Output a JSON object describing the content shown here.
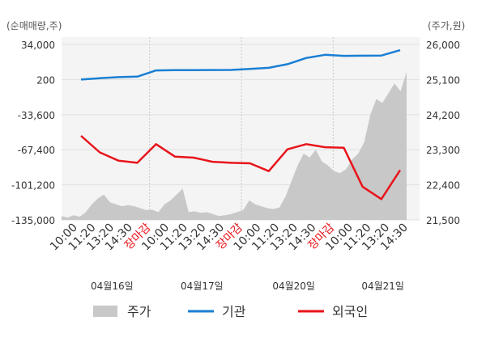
{
  "chart_data": {
    "type": "line",
    "left_axis_title": "(순매매량,주)",
    "right_axis_title": "(주가,원)",
    "left_ylim": [
      -135000,
      34000
    ],
    "right_ylim": [
      21500,
      26000
    ],
    "left_ticks": [
      "34,000",
      "200",
      "-33,600",
      "-67,400",
      "-101,200",
      "-135,000"
    ],
    "right_ticks": [
      "26,000",
      "25,100",
      "24,200",
      "23,300",
      "22,400",
      "21,500"
    ],
    "x_tick_labels": [
      "10:00",
      "11:20",
      "13:20",
      "14:30",
      "장마감",
      "10:00",
      "11:20",
      "13:20",
      "14:30",
      "장마감",
      "10:00",
      "11:20",
      "13:20",
      "14:30",
      "장마감",
      "10:00",
      "11:20",
      "13:20",
      "14:30"
    ],
    "x_tick_highlight": [
      false,
      false,
      false,
      false,
      true,
      false,
      false,
      false,
      false,
      true,
      false,
      false,
      false,
      false,
      true,
      false,
      false,
      false,
      false
    ],
    "dates": [
      "04월16일",
      "04월17일",
      "04월20일",
      "04월21일"
    ],
    "grid": true,
    "legend_position": "bottom",
    "legend": [
      {
        "name": "주가",
        "style": "area",
        "color": "#c8c8c8"
      },
      {
        "name": "기관",
        "style": "line",
        "color": "#1a7fd4"
      },
      {
        "name": "외국인",
        "style": "line",
        "color": "#e8141a"
      }
    ],
    "price_series": {
      "name": "주가",
      "axis": "right",
      "values": [
        21600,
        21560,
        21620,
        21580,
        21700,
        21900,
        22050,
        22150,
        21950,
        21900,
        21850,
        21880,
        21850,
        21800,
        21750,
        21760,
        21700,
        21900,
        22000,
        22150,
        22300,
        21700,
        21720,
        21680,
        21700,
        21650,
        21600,
        21620,
        21650,
        21700,
        21750,
        22000,
        21900,
        21850,
        21800,
        21780,
        21820,
        22100,
        22500,
        22900,
        23200,
        23100,
        23300,
        23000,
        22900,
        22750,
        22700,
        22800,
        23050,
        23200,
        23500,
        24200,
        24600,
        24500,
        24750,
        25000,
        24800,
        25300
      ]
    },
    "institution_series": {
      "name": "기관",
      "axis": "left",
      "values": [
        200,
        1500,
        2500,
        3000,
        9000,
        9200,
        9300,
        9400,
        9500,
        10500,
        11500,
        15000,
        21000,
        24000,
        23000,
        23200,
        23300,
        28500
      ]
    },
    "foreign_series": {
      "name": "외국인",
      "axis": "left",
      "values": [
        -54000,
        -70000,
        -78000,
        -80000,
        -62000,
        -74000,
        -75000,
        -79000,
        -80000,
        -80500,
        -88000,
        -67000,
        -62000,
        -65000,
        -65500,
        -103000,
        -115000,
        -87000
      ]
    }
  }
}
